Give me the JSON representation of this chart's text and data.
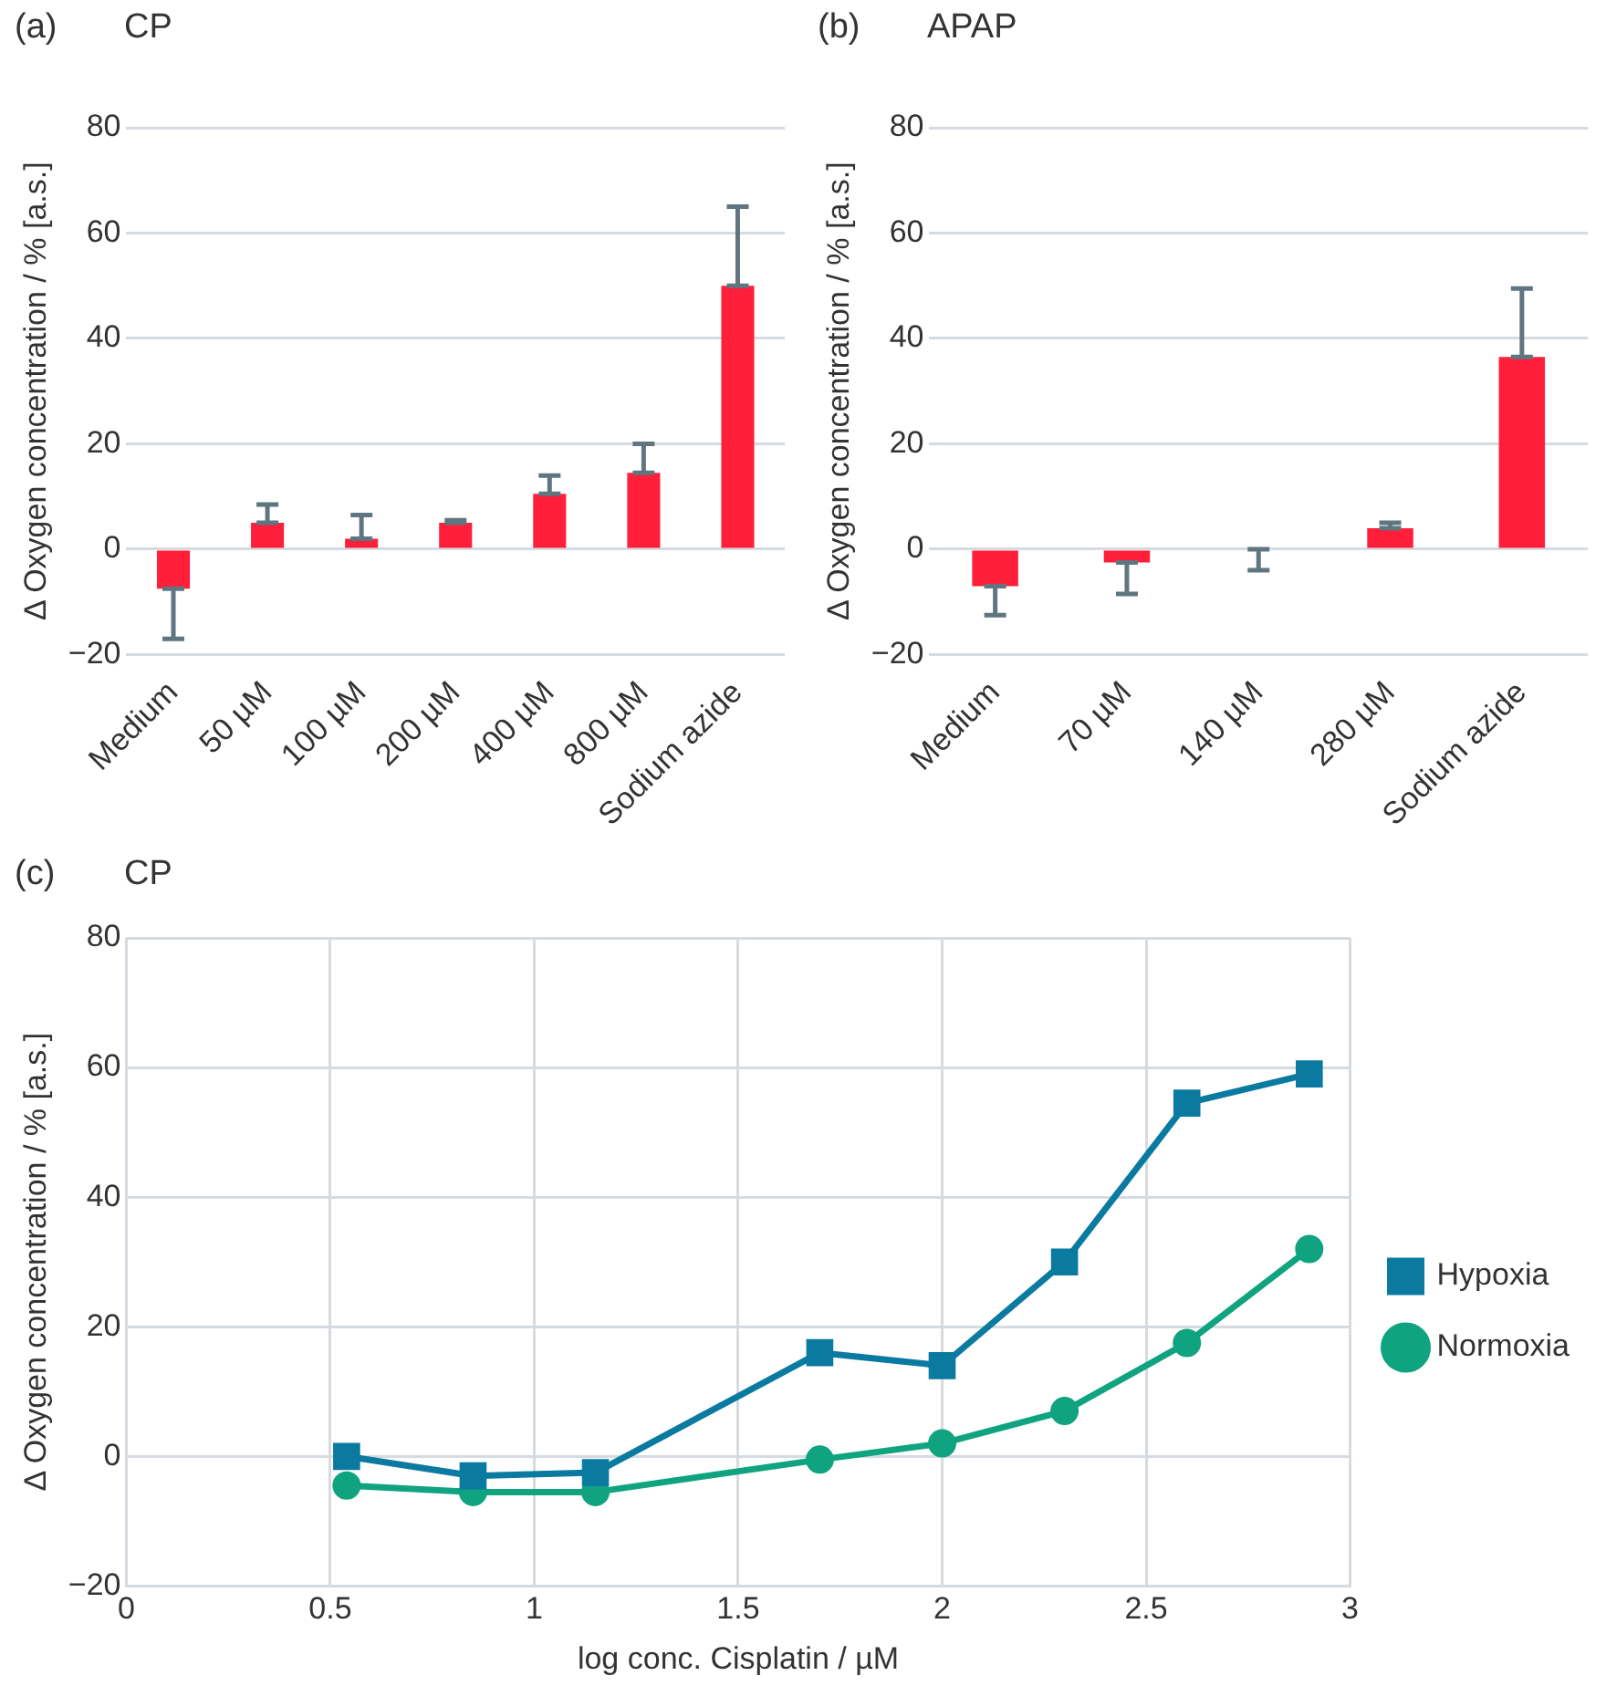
{
  "chart_data": [
    {
      "type": "bar",
      "title": "CP",
      "annotations": [
        "(a)"
      ],
      "ylabel": "Δ Oxygen concentration / % [a.s.]",
      "categories": [
        "Medium",
        "50 µM",
        "100 µM",
        "200 µM",
        "400 µM",
        "800 µM",
        "Sodium azide"
      ],
      "values": [
        -7.5,
        5,
        2,
        5,
        10.5,
        14.5,
        50
      ],
      "color": "#ff1f3a",
      "errors": [
        [
          -17,
          -7.5
        ],
        [
          5,
          8.5
        ],
        [
          2,
          6.5
        ],
        [
          5,
          5.5
        ],
        [
          10.5,
          14
        ],
        [
          14.5,
          20
        ],
        [
          50,
          65
        ]
      ],
      "ylim": [
        -20,
        80
      ],
      "yticks": [
        -20,
        0,
        20,
        40,
        60,
        80
      ],
      "grid": "y",
      "legend": false
    },
    {
      "type": "bar",
      "title": "APAP",
      "annotations": [
        "(b)"
      ],
      "ylabel": "Δ Oxygen concentration / % [a.s.]",
      "categories": [
        "Medium",
        "70 µM",
        "140 µM",
        "280 µM",
        "Sodium azide"
      ],
      "values": [
        -7,
        -2.5,
        0,
        4,
        36.5
      ],
      "color": "#ff1f3a",
      "errors": [
        [
          -12.5,
          -7
        ],
        [
          -8.5,
          -2.5
        ],
        [
          -4,
          0
        ],
        [
          4,
          5
        ],
        [
          36.5,
          49.5
        ]
      ],
      "ylim": [
        -20,
        80
      ],
      "yticks": [
        -20,
        0,
        20,
        40,
        60,
        80
      ],
      "grid": "y",
      "legend": false
    },
    {
      "type": "line",
      "title": "CP",
      "annotations": [
        "(c)"
      ],
      "xlabel": "log conc. Cisplatin / µM",
      "ylabel": "Δ Oxygen concentration / % [a.s.]",
      "x": [
        0.54,
        0.85,
        1.15,
        1.7,
        2.0,
        2.3,
        2.6,
        2.9
      ],
      "series": [
        {
          "name": "Hypoxia",
          "color": "#0a7aa0",
          "marker": "square",
          "values": [
            0,
            -3,
            -2.5,
            16,
            14,
            30,
            54.5,
            59
          ]
        },
        {
          "name": "Normoxia",
          "color": "#10a37f",
          "marker": "circle",
          "values": [
            -4.5,
            -5.5,
            -5.5,
            -0.5,
            2,
            7,
            17.5,
            32
          ]
        }
      ],
      "xlim": [
        0,
        3
      ],
      "xticks": [
        0,
        {
          "value": 0.5,
          "label": "0.5"
        },
        1,
        {
          "value": 1.5,
          "label": "1.5"
        },
        2,
        {
          "value": 2.5,
          "label": "2.5"
        },
        3
      ],
      "ylim": [
        -20,
        80
      ],
      "yticks": [
        -20,
        0,
        20,
        40,
        60,
        80
      ],
      "grid": true,
      "legend": "right",
      "line_style": "solid"
    }
  ]
}
